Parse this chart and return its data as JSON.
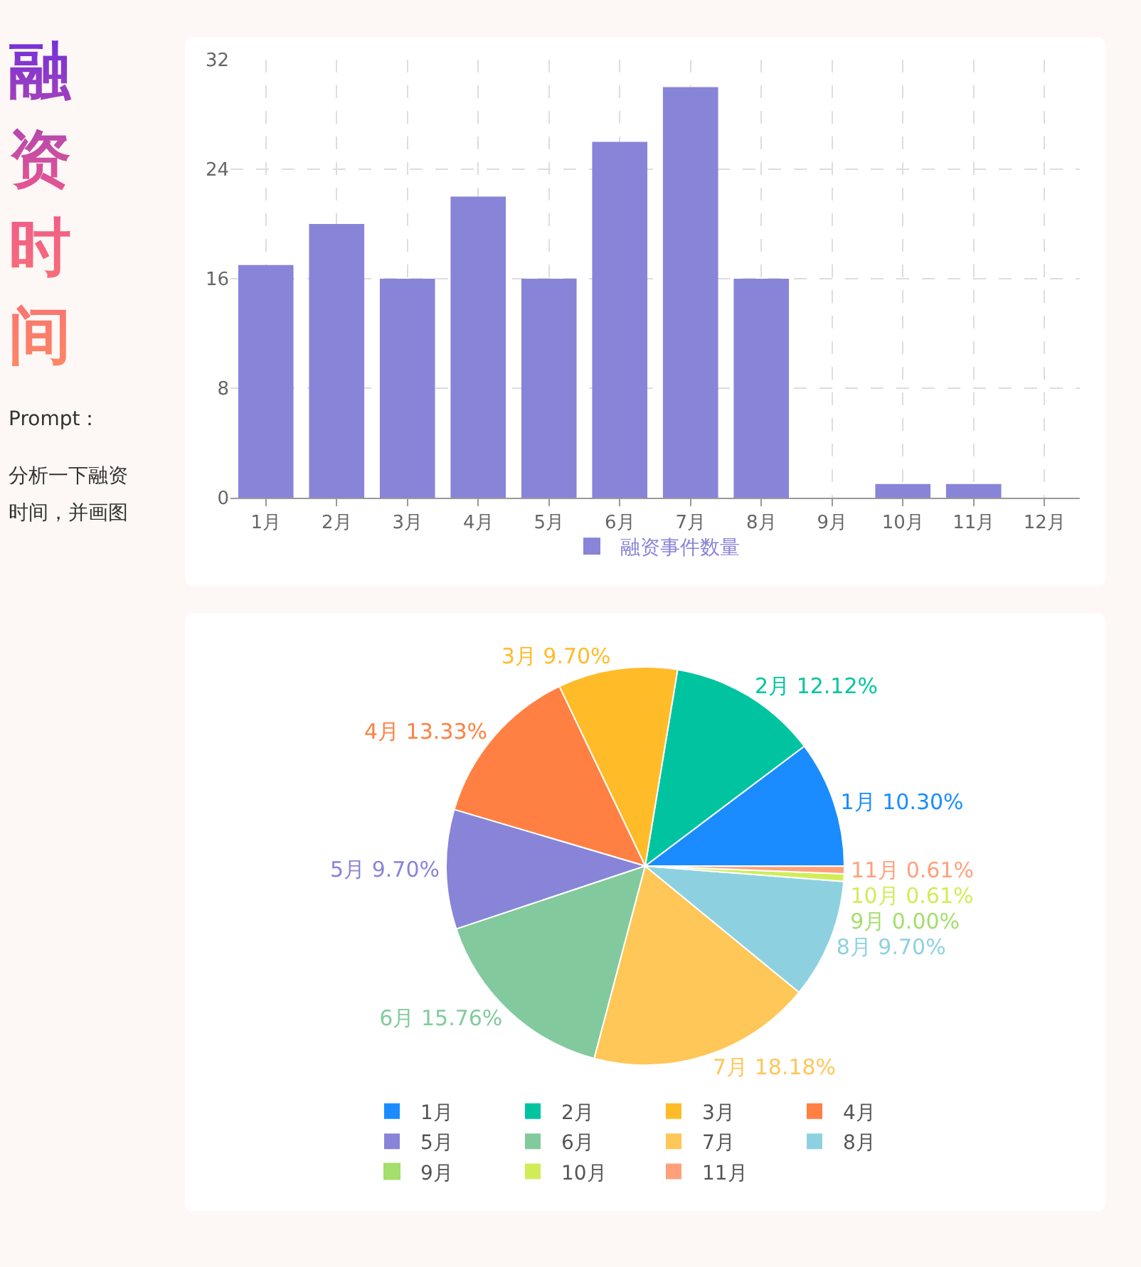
{
  "chart_data": [
    {
      "type": "bar",
      "title": "融资时间",
      "annotations": [
        "Prompt：",
        "分析一下融资时间，并画图"
      ],
      "categories": [
        "1月",
        "2月",
        "3月",
        "4月",
        "5月",
        "6月",
        "7月",
        "8月",
        "9月",
        "10月",
        "11月",
        "12月"
      ],
      "series": [
        {
          "name": "融资事件数量",
          "color": "#8884d8",
          "values": [
            17,
            20,
            16,
            22,
            16,
            26,
            30,
            16,
            0,
            1,
            1,
            0
          ]
        }
      ],
      "ylim": [
        0,
        32
      ],
      "yticks": [
        0,
        8,
        16,
        24,
        32
      ],
      "grid": true,
      "legend": "bottom"
    },
    {
      "type": "pie",
      "categories": [
        "1月",
        "2月",
        "3月",
        "4月",
        "5月",
        "6月",
        "7月",
        "8月",
        "9月",
        "10月",
        "11月"
      ],
      "values": [
        10.3,
        12.12,
        9.7,
        13.33,
        9.7,
        15.76,
        18.18,
        9.7,
        0.0,
        0.61,
        0.61
      ],
      "value_labels": [
        "1月 10.30%",
        "2月 12.12%",
        "3月 9.70%",
        "4月 13.33%",
        "5月 9.70%",
        "6月 15.76%",
        "7月 18.18%",
        "8月 9.70%",
        "9月 0.00%",
        "10月 0.61%",
        "11月 0.61%"
      ],
      "colors": [
        "#1a8cff",
        "#00c49f",
        "#ffbb28",
        "#ff8042",
        "#8884d8",
        "#82ca9d",
        "#ffc658",
        "#8dd1e1",
        "#a4de6c",
        "#d0ed57",
        "#ffa07a"
      ],
      "legend": "bottom"
    }
  ]
}
